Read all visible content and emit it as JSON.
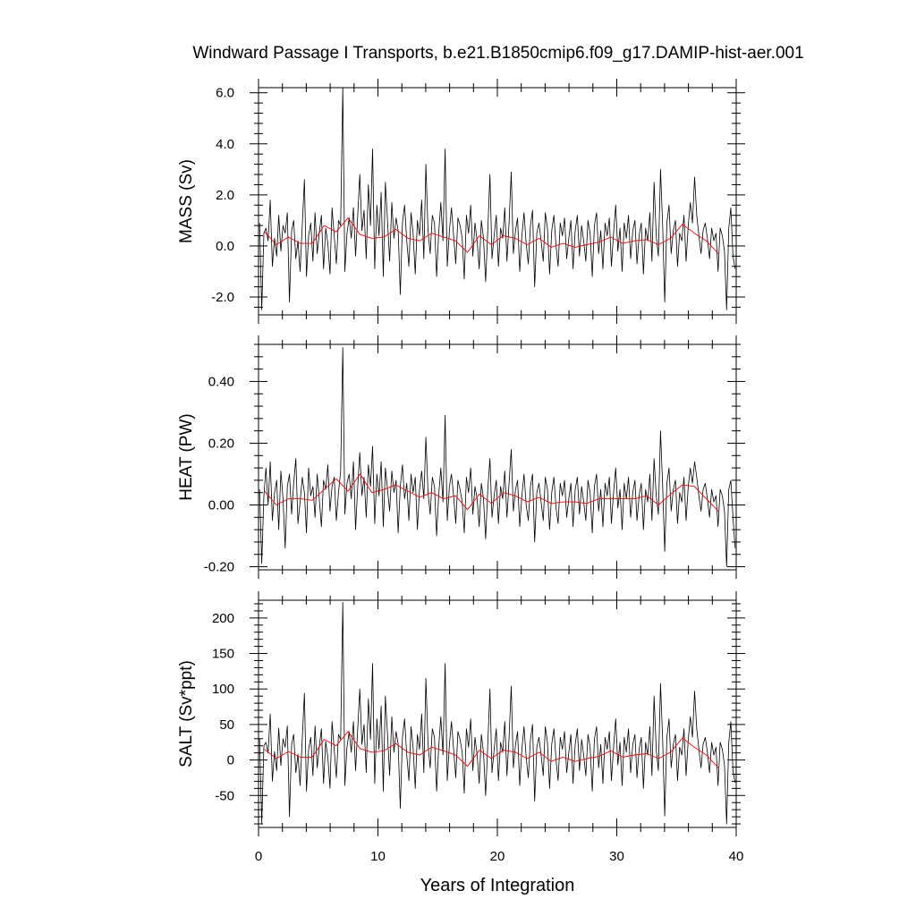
{
  "chart_data": {
    "type": "line",
    "title": "Windward Passage I Transports, b.e21.B1850cmip6.f09_g17.DAMIP-hist-aer.001",
    "xlabel": "Years of Integration",
    "xlim": [
      0,
      40
    ],
    "xticks": [
      0,
      10,
      20,
      30,
      40
    ],
    "x_tick_labels": [
      "0",
      "10",
      "20",
      "30",
      "40"
    ],
    "grid": false,
    "legend": "none",
    "colors": {
      "monthly": "#000000",
      "annual": "#ff0000"
    },
    "panels": [
      {
        "id": "mass",
        "ylabel": "MASS (Sv)",
        "ylim": [
          -2.7,
          6.2
        ],
        "yticks": [
          -2.0,
          0.0,
          2.0,
          4.0,
          6.0
        ],
        "y_tick_labels": [
          "-2.0",
          "0.0",
          "2.0",
          "4.0",
          "6.0"
        ],
        "series": [
          {
            "values": [
              0.9,
              -2.5,
              0.5,
              0.7,
              0.2,
              1.8,
              -0.8,
              0.3,
              -0.4,
              1.2,
              -0.2,
              0.8,
              0.5,
              1.3,
              -2.2,
              0.6,
              1.0,
              -0.5,
              0.2,
              -1.0,
              0.8,
              2.6,
              -1.2,
              0.4,
              0.9,
              -0.6,
              1.3,
              -0.3,
              0.5,
              1.2,
              -0.9,
              0.7,
              0.1,
              -1.1,
              1.5,
              0.4,
              -0.7,
              1.0,
              0.8,
              6.2,
              -1.0,
              0.5,
              1.1,
              0.3,
              1.5,
              -0.4,
              1.2,
              2.8,
              0.6,
              1.4,
              -0.5,
              2.4,
              0.8,
              3.8,
              -0.9,
              1.6,
              0.4,
              2.1,
              -1.2,
              2.5,
              1.0,
              -0.6,
              1.7,
              0.3,
              1.1,
              0.6,
              -1.9,
              0.9,
              1.6,
              0.2,
              -0.8,
              1.3,
              0.5,
              -1.1,
              1.0,
              0.4,
              1.8,
              -0.5,
              3.2,
              0.6,
              -0.3,
              1.2,
              0.9,
              -1.2,
              0.5,
              1.7,
              0.2,
              3.8,
              -0.8,
              0.6,
              1.5,
              0.4,
              -0.7,
              1.1,
              0.8,
              0.3,
              -1.3,
              1.2,
              0.5,
              1.6,
              -0.4,
              0.9,
              0.2,
              -0.9,
              1.0,
              0.3,
              -1.4,
              0.6,
              2.8,
              -0.5,
              0.4,
              1.2,
              -0.8,
              0.7,
              0.3,
              1.5,
              -0.6,
              0.9,
              2.9,
              -0.3,
              0.6,
              1.1,
              -1.0,
              0.4,
              1.3,
              0.1,
              -0.7,
              0.8,
              1.4,
              -1.6,
              0.5,
              0.9,
              0.2,
              -0.6,
              1.3,
              0.7,
              -1.1,
              0.6,
              1.2,
              0.0,
              -0.8,
              0.9,
              0.4,
              1.1,
              -0.5,
              0.3,
              1.0,
              -0.9,
              0.6,
              1.2,
              -0.4,
              0.8,
              0.2,
              -0.6,
              1.0,
              0.5,
              -1.2,
              0.8,
              1.3,
              -0.3,
              0.6,
              -0.9,
              0.9,
              0.4,
              1.1,
              -0.8,
              0.5,
              1.6,
              -0.2,
              0.7,
              -1.0,
              0.9,
              0.3,
              1.2,
              -0.5,
              0.6,
              1.0,
              -0.7,
              0.4,
              0.9,
              -1.1,
              0.7,
              0.2,
              1.3,
              -0.6,
              2.5,
              0.4,
              -0.4,
              3.0,
              0.8,
              -2.2,
              0.9,
              1.6,
              -0.3,
              0.6,
              1.0,
              -0.8,
              0.5,
              0.2,
              1.2,
              -0.6,
              0.8,
              1.7,
              0.9,
              2.7,
              1.2,
              0.4,
              -0.3,
              0.6,
              0.9,
              0.3,
              -0.5,
              0.7,
              0.2,
              0.5,
              -1.0,
              0.7,
              0.4,
              -0.2,
              -2.5,
              0.7,
              1.5,
              -0.4,
              -0.9
            ]
          },
          {
            "values": [
              0.55,
              0.05,
              0.35,
              0.1,
              0.1,
              0.8,
              0.55,
              1.1,
              0.45,
              0.3,
              0.35,
              0.65,
              0.3,
              0.2,
              0.5,
              0.35,
              0.2,
              -0.25,
              0.4,
              0.05,
              0.4,
              0.3,
              0.05,
              0.3,
              -0.05,
              0.1,
              -0.05,
              0.05,
              0.15,
              0.35,
              0.1,
              0.2,
              0.25,
              0.05,
              0.3,
              0.85,
              0.5,
              0.2,
              -0.3
            ]
          }
        ]
      },
      {
        "id": "heat",
        "ylabel": "HEAT (PW)",
        "ylim": [
          -0.21,
          0.52
        ],
        "yticks": [
          -0.2,
          0.0,
          0.2,
          0.4
        ],
        "y_tick_labels": [
          "-0.20",
          "0.00",
          "0.20",
          "0.40"
        ],
        "series": [
          {
            "values": [
              0.05,
              -0.19,
              0.03,
              0.12,
              0.0,
              0.14,
              -0.05,
              0.04,
              0.08,
              -0.08,
              0.11,
              0.02,
              -0.14,
              0.06,
              0.1,
              -0.03,
              0.07,
              0.15,
              -0.06,
              0.01,
              0.09,
              0.04,
              -0.09,
              0.12,
              0.03,
              0.06,
              -0.04,
              0.1,
              0.02,
              -0.07,
              0.08,
              0.05,
              0.13,
              -0.02,
              0.06,
              0.09,
              -0.05,
              0.04,
              0.11,
              0.51,
              -0.03,
              0.07,
              0.1,
              0.02,
              0.14,
              -0.08,
              0.06,
              0.17,
              0.03,
              0.09,
              -0.04,
              0.13,
              0.06,
              0.19,
              -0.06,
              0.1,
              0.03,
              0.14,
              -0.07,
              0.12,
              0.05,
              -0.02,
              0.11,
              0.04,
              0.08,
              -0.09,
              0.06,
              0.13,
              0.02,
              0.07,
              -0.05,
              0.1,
              0.04,
              0.09,
              -0.08,
              0.05,
              0.11,
              0.02,
              0.22,
              0.04,
              -0.03,
              0.09,
              0.06,
              -0.1,
              0.03,
              0.12,
              0.01,
              0.29,
              -0.05,
              0.06,
              0.1,
              0.03,
              -0.06,
              0.08,
              0.05,
              0.01,
              -0.09,
              0.09,
              0.04,
              0.12,
              -0.03,
              0.06,
              0.02,
              -0.07,
              0.07,
              0.02,
              -0.11,
              0.05,
              0.15,
              -0.04,
              0.03,
              0.08,
              -0.06,
              0.06,
              0.02,
              0.11,
              -0.04,
              0.07,
              0.18,
              -0.02,
              0.05,
              0.08,
              -0.07,
              0.03,
              0.1,
              0.0,
              -0.05,
              0.06,
              0.1,
              -0.12,
              0.04,
              0.07,
              0.01,
              -0.05,
              0.09,
              0.05,
              -0.08,
              0.04,
              0.09,
              -0.01,
              -0.06,
              0.07,
              0.03,
              0.08,
              -0.04,
              0.02,
              0.07,
              -0.07,
              0.05,
              0.09,
              -0.03,
              0.06,
              0.01,
              -0.05,
              0.08,
              0.04,
              -0.09,
              0.06,
              0.1,
              -0.02,
              0.05,
              -0.07,
              0.07,
              0.03,
              0.09,
              -0.06,
              0.04,
              0.12,
              -0.01,
              0.05,
              -0.08,
              0.07,
              0.02,
              0.09,
              -0.04,
              0.04,
              0.08,
              -0.05,
              0.03,
              0.07,
              -0.08,
              0.05,
              0.01,
              0.1,
              -0.05,
              0.15,
              0.03,
              -0.03,
              0.24,
              0.06,
              -0.15,
              0.07,
              0.12,
              -0.02,
              0.05,
              0.08,
              -0.06,
              0.04,
              0.01,
              0.09,
              -0.05,
              0.06,
              0.12,
              0.07,
              0.14,
              0.09,
              0.03,
              -0.02,
              0.05,
              0.07,
              0.02,
              -0.04,
              0.05,
              0.01,
              0.03,
              -0.07,
              0.05,
              0.03,
              -0.02,
              -0.2,
              0.05,
              0.08,
              -0.04,
              -0.14
            ]
          },
          {
            "values": [
              0.045,
              0.0,
              0.02,
              0.02,
              0.015,
              0.05,
              0.085,
              0.045,
              0.1,
              0.04,
              0.05,
              0.065,
              0.045,
              0.025,
              0.04,
              0.02,
              0.03,
              -0.015,
              0.035,
              0.005,
              0.04,
              0.03,
              0.01,
              0.025,
              0.005,
              0.01,
              0.01,
              0.005,
              0.02,
              0.02,
              0.02,
              0.02,
              0.03,
              0.0,
              0.035,
              0.065,
              0.06,
              0.02,
              -0.02
            ]
          }
        ]
      },
      {
        "id": "salt",
        "ylabel": "SALT (Sv*ppt)",
        "ylim": [
          -95,
          225
        ],
        "yticks": [
          -50,
          0,
          50,
          100,
          150,
          200
        ],
        "y_tick_labels": [
          "-50",
          "0",
          "50",
          "100",
          "150",
          "200"
        ],
        "series": [
          {
            "values": [
              30,
              -90,
              20,
              25,
              10,
              65,
              -30,
              12,
              -15,
              45,
              -8,
              30,
              18,
              48,
              -80,
              22,
              36,
              -18,
              8,
              -36,
              30,
              94,
              -44,
              15,
              32,
              -22,
              48,
              -11,
              18,
              44,
              -33,
              26,
              4,
              -40,
              54,
              15,
              -25,
              36,
              29,
              222,
              -36,
              18,
              40,
              11,
              54,
              -15,
              44,
              100,
              22,
              50,
              -18,
              86,
              29,
              136,
              -33,
              58,
              15,
              76,
              -44,
              90,
              36,
              -22,
              61,
              11,
              40,
              22,
              -68,
              32,
              58,
              7,
              -29,
              47,
              18,
              -40,
              36,
              15,
              65,
              -18,
              115,
              22,
              -11,
              44,
              32,
              -44,
              18,
              61,
              7,
              136,
              -29,
              22,
              54,
              15,
              -25,
              40,
              29,
              11,
              -47,
              44,
              18,
              58,
              -15,
              32,
              7,
              -33,
              36,
              11,
              -50,
              22,
              100,
              -18,
              15,
              44,
              -29,
              25,
              11,
              54,
              -22,
              32,
              104,
              -11,
              22,
              40,
              -36,
              15,
              47,
              4,
              -25,
              29,
              50,
              -58,
              18,
              32,
              7,
              -22,
              47,
              25,
              -40,
              22,
              44,
              0,
              -29,
              32,
              15,
              40,
              -18,
              11,
              36,
              -33,
              22,
              44,
              -15,
              29,
              7,
              -22,
              36,
              18,
              -44,
              29,
              47,
              -11,
              22,
              -33,
              32,
              15,
              40,
              -29,
              18,
              58,
              -7,
              25,
              -36,
              32,
              11,
              44,
              -18,
              22,
              36,
              -25,
              15,
              32,
              -40,
              25,
              7,
              47,
              -22,
              90,
              15,
              -15,
              108,
              29,
              -79,
              32,
              58,
              -11,
              22,
              36,
              -29,
              18,
              7,
              44,
              -22,
              29,
              61,
              32,
              97,
              44,
              15,
              -11,
              22,
              32,
              11,
              -18,
              25,
              7,
              18,
              -36,
              25,
              15,
              -7,
              -90,
              25,
              54,
              -15,
              -32
            ]
          },
          {
            "values": [
              15,
              2,
              12,
              4,
              4,
              29,
              20,
              40,
              16,
              11,
              13,
              23,
              11,
              7,
              18,
              13,
              7,
              -9,
              14,
              2,
              14,
              11,
              2,
              11,
              -2,
              4,
              -2,
              2,
              5,
              13,
              4,
              7,
              9,
              2,
              11,
              31,
              18,
              7,
              -11
            ]
          }
        ]
      }
    ]
  }
}
